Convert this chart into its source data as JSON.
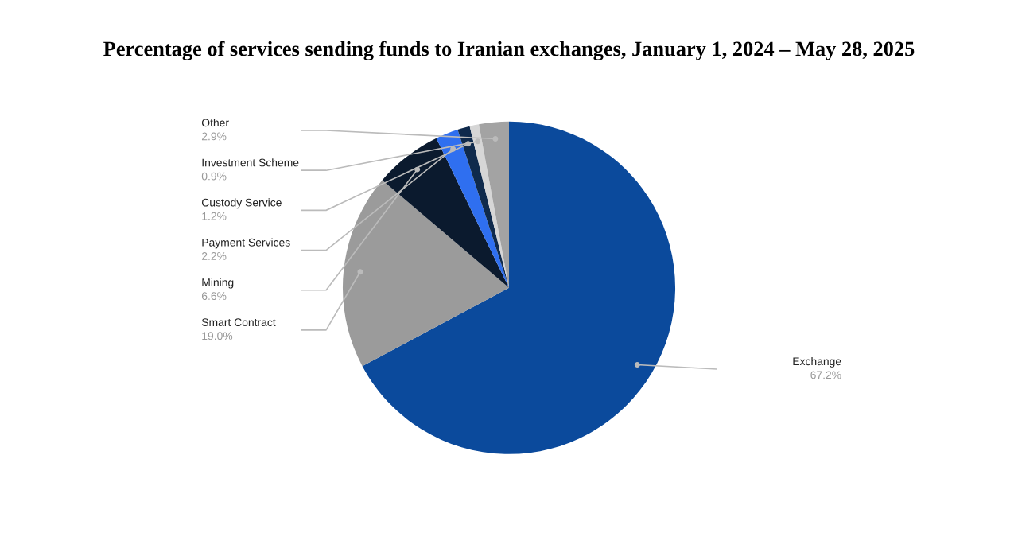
{
  "chart_data": {
    "type": "pie",
    "title": "Percentage of services sending funds to Iranian exchanges, January 1, 2024 – May 28, 2025",
    "categories": [
      "Exchange",
      "Smart Contract",
      "Mining",
      "Payment Services",
      "Custody Service",
      "Investment Scheme",
      "Other"
    ],
    "values": [
      67.2,
      19.0,
      6.6,
      2.2,
      1.2,
      0.9,
      2.9
    ],
    "value_labels": [
      "67.2%",
      "19.0%",
      "6.6%",
      "2.2%",
      "1.2%",
      "0.9%",
      "2.9%"
    ],
    "colors": [
      "#0b4a9c",
      "#9b9b9b",
      "#0b1a2e",
      "#2f6ff0",
      "#0f2a4c",
      "#d6d6d6",
      "#a3a3a3"
    ],
    "legend": false
  }
}
